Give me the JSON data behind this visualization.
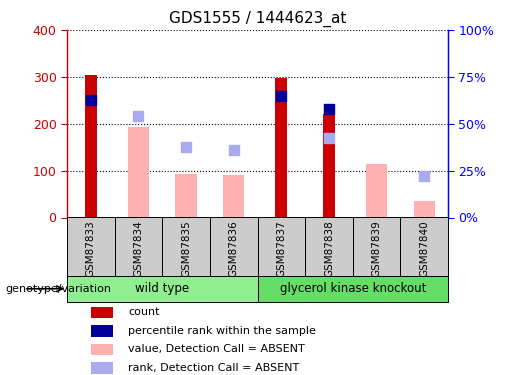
{
  "title": "GDS1555 / 1444623_at",
  "samples": [
    "GSM87833",
    "GSM87834",
    "GSM87835",
    "GSM87836",
    "GSM87837",
    "GSM87838",
    "GSM87839",
    "GSM87840"
  ],
  "count_values": [
    305,
    null,
    null,
    null,
    298,
    220,
    null,
    null
  ],
  "percentile_rank_left": [
    250,
    null,
    null,
    null,
    260,
    232,
    null,
    null
  ],
  "absent_value": [
    null,
    194,
    93,
    90,
    null,
    null,
    115,
    35
  ],
  "absent_rank_left": [
    null,
    216,
    150,
    143,
    null,
    170,
    null,
    88
  ],
  "genotype_groups": [
    {
      "label": "wild type",
      "start": 0,
      "end": 3,
      "color": "#90EE90"
    },
    {
      "label": "glycerol kinase knockout",
      "start": 4,
      "end": 7,
      "color": "#66DD66"
    }
  ],
  "ylim_left": [
    0,
    400
  ],
  "ylim_right": [
    0,
    100
  ],
  "yticks_left": [
    0,
    100,
    200,
    300,
    400
  ],
  "ytick_labels_left": [
    "0",
    "100",
    "200",
    "300",
    "400"
  ],
  "yticks_right": [
    0,
    25,
    50,
    75,
    100
  ],
  "ytick_labels_right": [
    "0%",
    "25%",
    "50%",
    "75%",
    "100%"
  ],
  "count_color": "#CC0000",
  "percentile_color": "#000099",
  "absent_value_color": "#FFB0B0",
  "absent_rank_color": "#AAAAEE",
  "count_bar_width": 0.25,
  "absent_bar_width": 0.18,
  "legend_items": [
    {
      "label": "count",
      "color": "#CC0000"
    },
    {
      "label": "percentile rank within the sample",
      "color": "#000099"
    },
    {
      "label": "value, Detection Call = ABSENT",
      "color": "#FFB0B0"
    },
    {
      "label": "rank, Detection Call = ABSENT",
      "color": "#AAAAEE"
    }
  ],
  "plot_bg": "#FFFFFF",
  "fig_bg": "#FFFFFF"
}
